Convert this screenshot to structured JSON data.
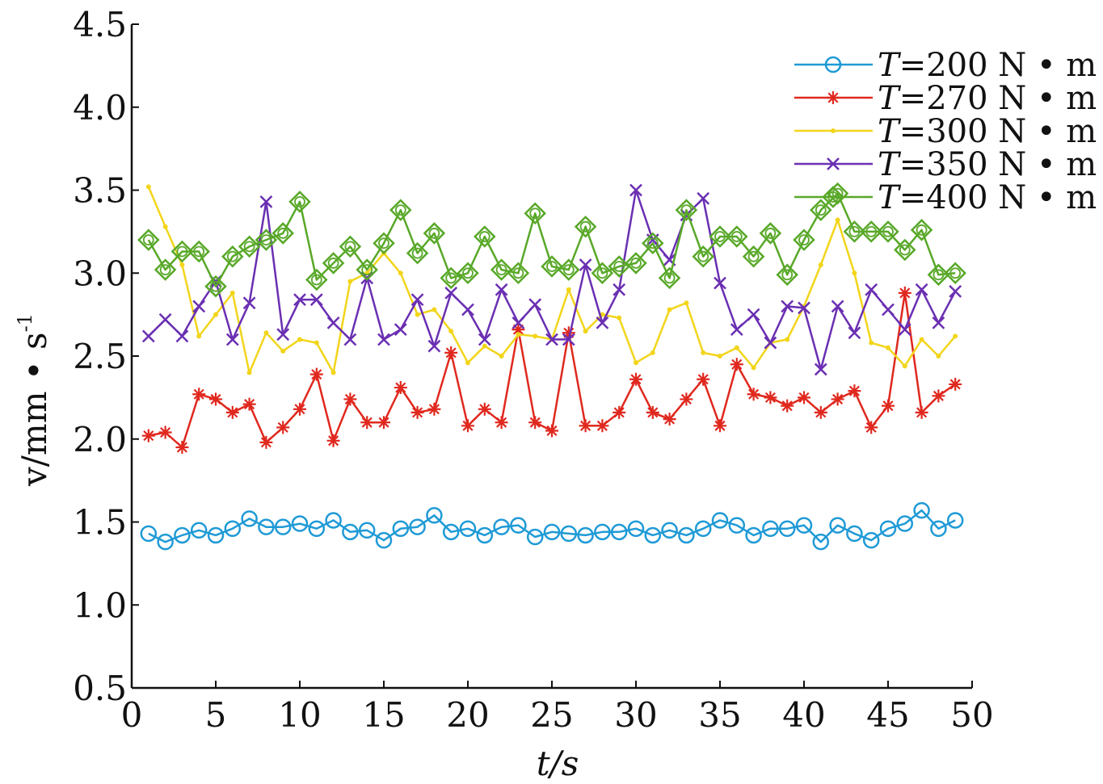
{
  "chart_data": {
    "type": "line",
    "xlabel": "t/s",
    "ylabel": "v/mm • s",
    "ylabel_superscript": "-1",
    "xlim": [
      0,
      50
    ],
    "ylim": [
      0.5,
      4.5
    ],
    "x_ticks": [
      "0",
      "5",
      "10",
      "15",
      "20",
      "25",
      "30",
      "35",
      "40",
      "45",
      "50"
    ],
    "y_ticks": [
      "0.5",
      "1.0",
      "1.5",
      "2.0",
      "2.5",
      "3.0",
      "3.5",
      "4.0",
      "4.5"
    ],
    "grid": false,
    "legend_position": "top-right",
    "x": [
      1,
      2,
      3,
      4,
      5,
      6,
      7,
      8,
      9,
      10,
      11,
      12,
      13,
      14,
      15,
      16,
      17,
      18,
      19,
      20,
      21,
      22,
      23,
      24,
      25,
      26,
      27,
      28,
      29,
      30,
      31,
      32,
      33,
      34,
      35,
      36,
      37,
      38,
      39,
      40,
      41,
      42,
      43,
      44,
      45,
      46,
      47,
      48,
      49
    ],
    "series": [
      {
        "name": "T=200 N • m",
        "name_italic": "T",
        "name_rest": "=200 N • m",
        "color": "#1f9ad6",
        "marker": "circle",
        "values": [
          1.43,
          1.38,
          1.42,
          1.45,
          1.42,
          1.46,
          1.52,
          1.47,
          1.47,
          1.49,
          1.46,
          1.51,
          1.44,
          1.45,
          1.39,
          1.46,
          1.47,
          1.54,
          1.44,
          1.46,
          1.42,
          1.47,
          1.48,
          1.41,
          1.44,
          1.43,
          1.42,
          1.44,
          1.44,
          1.46,
          1.42,
          1.45,
          1.42,
          1.46,
          1.51,
          1.48,
          1.42,
          1.46,
          1.46,
          1.48,
          1.38,
          1.48,
          1.43,
          1.39,
          1.46,
          1.49,
          1.57,
          1.46,
          1.51
        ]
      },
      {
        "name": "T=270 N • m",
        "name_italic": "T",
        "name_rest": "=270 N • m",
        "color": "#e0281e",
        "marker": "star",
        "values": [
          2.02,
          2.04,
          1.95,
          2.27,
          2.24,
          2.16,
          2.21,
          1.98,
          2.07,
          2.18,
          2.39,
          1.99,
          2.24,
          2.1,
          2.1,
          2.31,
          2.16,
          2.18,
          2.52,
          2.08,
          2.18,
          2.1,
          2.66,
          2.1,
          2.05,
          2.64,
          2.08,
          2.08,
          2.16,
          2.36,
          2.16,
          2.12,
          2.24,
          2.36,
          2.08,
          2.45,
          2.27,
          2.25,
          2.2,
          2.25,
          2.16,
          2.24,
          2.29,
          2.07,
          2.2,
          2.88,
          2.16,
          2.26,
          2.33
        ]
      },
      {
        "name": "T=300 N • m",
        "name_italic": "T",
        "name_rest": "=300 N • m",
        "color": "#f2d51a",
        "marker": "dot",
        "values": [
          3.52,
          3.28,
          3.05,
          2.62,
          2.75,
          2.88,
          2.4,
          2.64,
          2.53,
          2.6,
          2.58,
          2.4,
          2.95,
          3.0,
          3.12,
          3.0,
          2.75,
          2.78,
          2.65,
          2.46,
          2.56,
          2.5,
          2.63,
          2.62,
          2.6,
          2.9,
          2.65,
          2.75,
          2.73,
          2.46,
          2.52,
          2.78,
          2.82,
          2.52,
          2.5,
          2.55,
          2.43,
          2.58,
          2.6,
          2.8,
          3.05,
          3.32,
          3.0,
          2.58,
          2.55,
          2.44,
          2.6,
          2.5,
          2.62
        ]
      },
      {
        "name": "T=350 N • m",
        "name_italic": "T",
        "name_rest": "=350 N • m",
        "color": "#6a2fb2",
        "marker": "x",
        "values": [
          2.62,
          2.72,
          2.62,
          2.8,
          2.95,
          2.6,
          2.82,
          3.43,
          2.63,
          2.84,
          2.84,
          2.7,
          2.6,
          2.97,
          2.6,
          2.66,
          2.84,
          2.56,
          2.88,
          2.78,
          2.6,
          2.9,
          2.7,
          2.81,
          2.6,
          2.6,
          3.05,
          2.7,
          2.9,
          3.5,
          3.2,
          3.08,
          3.35,
          3.45,
          2.94,
          2.66,
          2.75,
          2.58,
          2.8,
          2.79,
          2.42,
          2.8,
          2.64,
          2.9,
          2.78,
          2.66,
          2.9,
          2.7,
          2.89
        ]
      },
      {
        "name": "T=400 N • m",
        "name_italic": "T",
        "name_rest": "=400 N • m",
        "color": "#58a828",
        "marker": "diamond",
        "values": [
          3.2,
          3.02,
          3.13,
          3.13,
          2.92,
          3.1,
          3.16,
          3.2,
          3.24,
          3.43,
          2.96,
          3.06,
          3.16,
          3.02,
          3.18,
          3.38,
          3.12,
          3.24,
          2.97,
          3.0,
          3.22,
          3.02,
          3.0,
          3.36,
          3.04,
          3.02,
          3.28,
          3.0,
          3.04,
          3.06,
          3.18,
          2.97,
          3.38,
          3.1,
          3.22,
          3.22,
          3.1,
          3.24,
          2.99,
          3.2,
          3.38,
          3.48,
          3.25,
          3.25,
          3.25,
          3.14,
          3.26,
          2.99,
          3.0
        ]
      }
    ]
  }
}
